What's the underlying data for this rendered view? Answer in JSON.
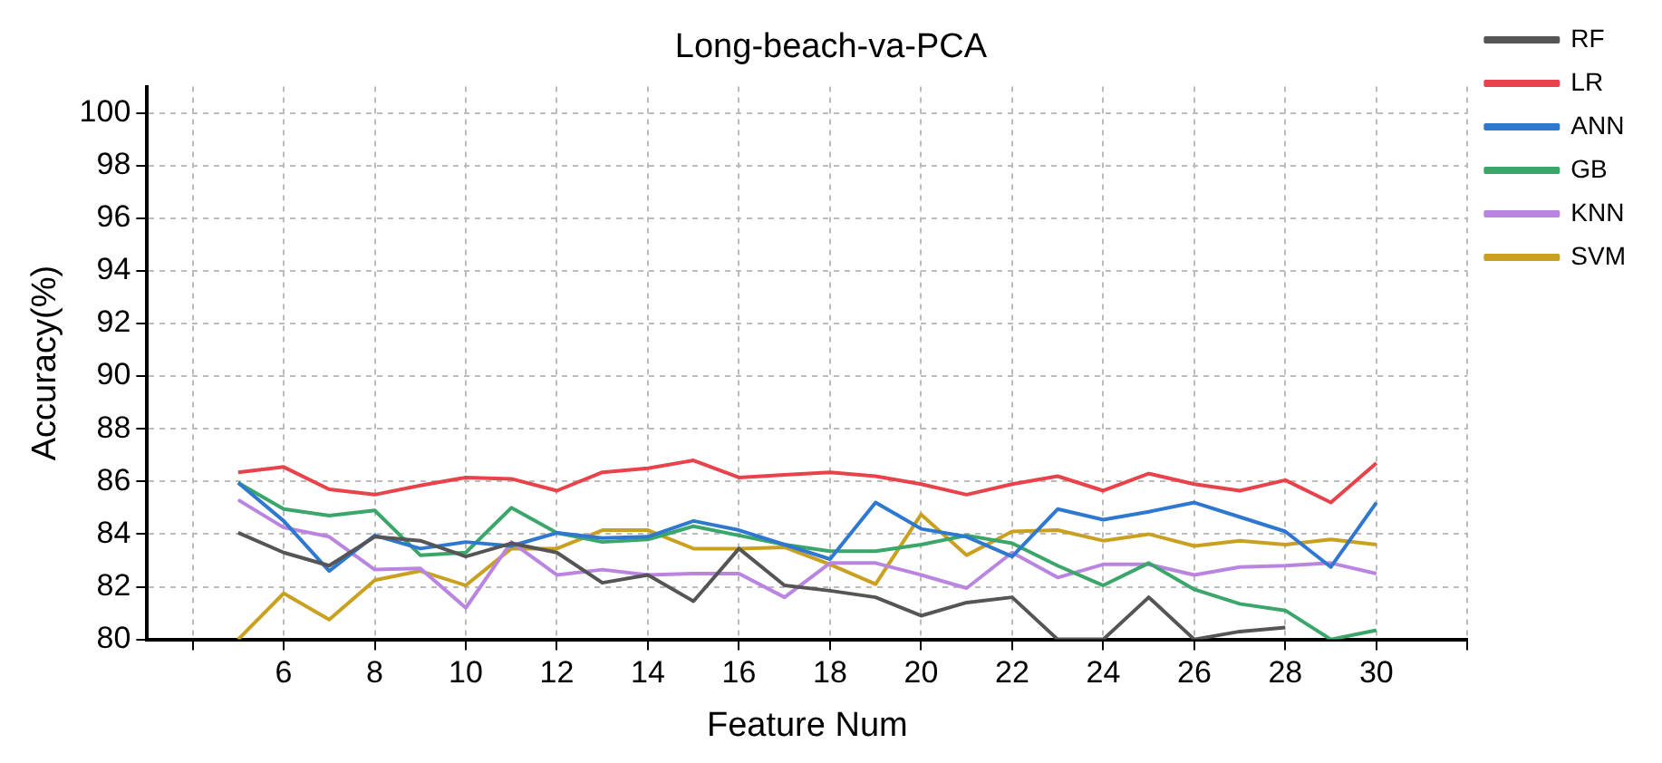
{
  "chart_data": {
    "type": "line",
    "title": "Long-beach-va-PCA",
    "xlabel": "Feature Num",
    "ylabel": "Accuracy(%)",
    "x": [
      5,
      6,
      7,
      8,
      9,
      10,
      11,
      12,
      13,
      14,
      15,
      16,
      17,
      18,
      19,
      20,
      21,
      22,
      23,
      24,
      25,
      26,
      27,
      28,
      29,
      30
    ],
    "series": [
      {
        "name": "RF",
        "color": "#555555",
        "values": [
          84.05,
          83.3,
          82.8,
          83.9,
          83.75,
          83.15,
          83.65,
          83.3,
          82.15,
          82.45,
          81.45,
          83.45,
          82.05,
          81.85,
          81.6,
          80.9,
          81.4,
          81.6,
          80,
          80,
          81.6,
          80,
          80.3,
          80.45,
          null,
          null
        ]
      },
      {
        "name": "LR",
        "color": "#e8424a",
        "values": [
          86.35,
          86.55,
          85.7,
          85.5,
          85.85,
          86.15,
          86.1,
          85.65,
          86.35,
          86.5,
          86.8,
          86.15,
          86.25,
          86.35,
          86.2,
          85.9,
          85.5,
          85.9,
          86.2,
          85.65,
          86.3,
          85.9,
          85.65,
          86.05,
          85.2,
          86.7
        ]
      },
      {
        "name": "ANN",
        "color": "#2f78d0",
        "values": [
          85.95,
          84.5,
          82.6,
          83.95,
          83.45,
          83.7,
          83.55,
          84.05,
          83.85,
          83.9,
          84.5,
          84.15,
          83.6,
          83.05,
          85.2,
          84.2,
          83.9,
          83.15,
          84.95,
          84.55,
          84.85,
          85.2,
          84.65,
          84.1,
          82.75,
          85.2
        ]
      },
      {
        "name": "GB",
        "color": "#3aa66a",
        "values": [
          85.95,
          84.95,
          84.7,
          84.9,
          83.2,
          83.3,
          85.0,
          84.05,
          83.7,
          83.8,
          84.3,
          83.95,
          83.6,
          83.35,
          83.35,
          83.6,
          83.95,
          83.65,
          82.8,
          82.05,
          82.9,
          81.9,
          81.35,
          81.1,
          80,
          80.35
        ]
      },
      {
        "name": "KNN",
        "color": "#b985e0",
        "values": [
          85.3,
          84.25,
          83.9,
          82.65,
          82.7,
          81.2,
          83.7,
          82.45,
          82.65,
          82.45,
          82.5,
          82.5,
          81.6,
          82.9,
          82.9,
          82.45,
          81.95,
          83.3,
          82.35,
          82.85,
          82.85,
          82.45,
          82.75,
          82.8,
          82.9,
          82.5
        ]
      },
      {
        "name": "SVM",
        "color": "#c9a020",
        "values": [
          80,
          81.75,
          80.75,
          82.25,
          82.6,
          82.05,
          83.45,
          83.45,
          84.15,
          84.15,
          83.45,
          83.45,
          83.5,
          82.85,
          82.1,
          84.75,
          83.2,
          84.1,
          84.15,
          83.75,
          84.0,
          83.55,
          83.75,
          83.6,
          83.8,
          83.6
        ]
      }
    ],
    "xlim": [
      3,
      32
    ],
    "xticks": [
      {
        "value": 4,
        "label": null
      },
      6,
      8,
      10,
      12,
      14,
      16,
      18,
      20,
      22,
      24,
      26,
      28,
      30,
      {
        "value": 32,
        "label": null
      }
    ],
    "ylim": [
      80,
      101
    ],
    "yticks": [
      80,
      82,
      84,
      86,
      88,
      90,
      92,
      94,
      96,
      98,
      100
    ],
    "grid": true,
    "legend": "top right",
    "marker": "none",
    "line_style": "solid"
  }
}
